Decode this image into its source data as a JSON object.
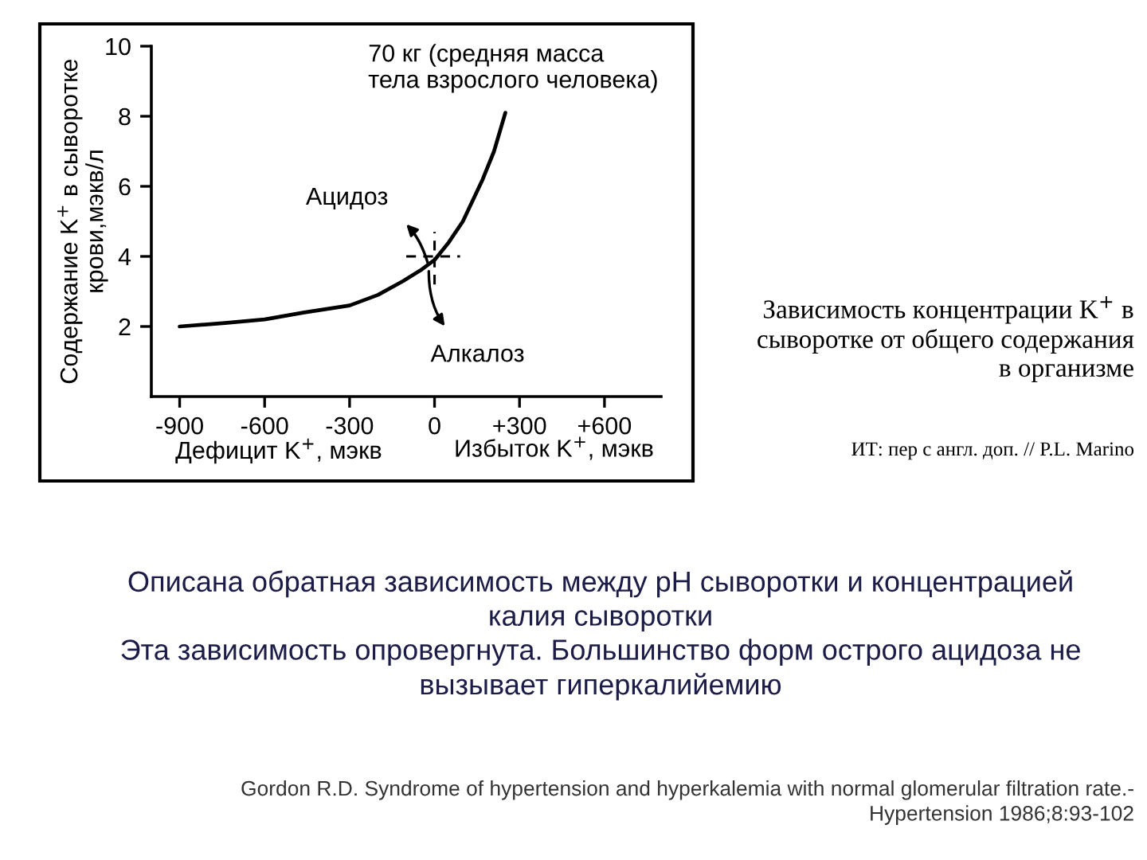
{
  "chart_data": {
    "type": "line",
    "title": "Зависимость концентрации K$^{+}$ в\nсыворотке от общего содержания\nв организме",
    "xlabel": "Дефицит K$^{+}$, мэкв",
    "ylabel": "Содержание K$^{+}$ в сыворотке\nкрови,мэкв/л",
    "annotations": [
      {
        "text": "Ацидоз",
        "x": -20,
        "y": 3.7
      },
      {
        "text": "Алкалоз",
        "x": -20,
        "y": 3.7
      },
      "Избыток K$^{+}$, мэкв",
      "ИТ: пер с англ. доп. // P.L. Marino",
      "Описана обратная зависимость между pH сыворотки и концентрацией\nкалия сыворотки\nЭта зависимость опровергнута. Большинство форм острого ацидоза не\nвызывает гиперкалийемию",
      "Gordon R.D. Syndrome of hypertension and hyperkalemia with normal glomerular filtration rate.-\nHypertension 1986;8:93-102"
    ],
    "series": [
      {
        "name": "70 кг (средняя масса\nтела взрослого человека)",
        "color": "#000000",
        "x": [
          -900,
          -740,
          -600,
          -460,
          -300,
          -200,
          -110,
          -50,
          0,
          50,
          100,
          170,
          210,
          250
        ],
        "values": [
          2.0,
          2.1,
          2.2,
          2.4,
          2.6,
          2.9,
          3.3,
          3.6,
          3.9,
          4.4,
          5.0,
          6.2,
          7.0,
          8.1
        ]
      },
      {
        "color": "#000000",
        "x": [
          -100,
          90
        ],
        "values": [
          4,
          4
        ],
        "line_style": "dashed"
      },
      {
        "color": "#000000",
        "x": [
          0,
          0
        ],
        "values": [
          3.2,
          4.7
        ],
        "line_style": "dashed"
      }
    ],
    "line_style": "solid",
    "xlim": [
      -1000,
      800
    ],
    "xticks": [
      -900,
      -600,
      -300,
      0,
      {
        "value": 300,
        "label": "+300"
      },
      {
        "value": 600,
        "label": "+600"
      }
    ],
    "ylim": [
      0,
      10
    ],
    "yticks": [
      2,
      4,
      6,
      8,
      10
    ]
  }
}
